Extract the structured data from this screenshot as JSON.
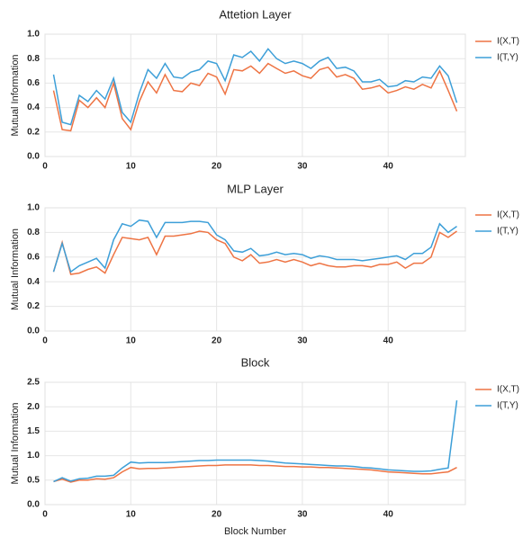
{
  "chart_data": [
    {
      "type": "line",
      "title": "Attetion Layer",
      "ylabel": "Mutual Information",
      "x": [
        1,
        2,
        3,
        4,
        5,
        6,
        7,
        8,
        9,
        10,
        11,
        12,
        13,
        14,
        15,
        16,
        17,
        18,
        19,
        20,
        21,
        22,
        23,
        24,
        25,
        26,
        27,
        28,
        29,
        30,
        31,
        32,
        33,
        34,
        35,
        36,
        37,
        38,
        39,
        40,
        41,
        42,
        43,
        44,
        45,
        46,
        47,
        48
      ],
      "series": [
        {
          "name": "I(X,T)",
          "color": "#ee7444",
          "values": [
            0.54,
            0.22,
            0.21,
            0.46,
            0.4,
            0.48,
            0.4,
            0.6,
            0.31,
            0.22,
            0.45,
            0.61,
            0.52,
            0.67,
            0.54,
            0.53,
            0.6,
            0.58,
            0.68,
            0.65,
            0.51,
            0.71,
            0.7,
            0.74,
            0.68,
            0.76,
            0.72,
            0.68,
            0.7,
            0.66,
            0.64,
            0.71,
            0.73,
            0.65,
            0.67,
            0.64,
            0.55,
            0.56,
            0.58,
            0.52,
            0.54,
            0.57,
            0.55,
            0.59,
            0.56,
            0.7,
            0.54,
            0.37
          ]
        },
        {
          "name": "I(T,Y)",
          "color": "#3d9fd8",
          "values": [
            0.67,
            0.28,
            0.26,
            0.5,
            0.45,
            0.54,
            0.47,
            0.64,
            0.36,
            0.28,
            0.52,
            0.71,
            0.64,
            0.76,
            0.65,
            0.64,
            0.69,
            0.71,
            0.78,
            0.76,
            0.62,
            0.83,
            0.81,
            0.86,
            0.78,
            0.88,
            0.8,
            0.76,
            0.78,
            0.76,
            0.72,
            0.78,
            0.81,
            0.72,
            0.73,
            0.7,
            0.61,
            0.61,
            0.63,
            0.57,
            0.58,
            0.62,
            0.61,
            0.65,
            0.64,
            0.74,
            0.66,
            0.44
          ]
        }
      ],
      "xlim": [
        0,
        49
      ],
      "xticks": [
        0,
        10,
        20,
        30,
        40
      ],
      "ylim": [
        0,
        1
      ],
      "yticks": [
        {
          "value": 0,
          "label": "0.0"
        },
        {
          "value": 0.2,
          "label": "0.2"
        },
        {
          "value": 0.4,
          "label": "0.4"
        },
        {
          "value": 0.6,
          "label": "0.6"
        },
        {
          "value": 0.8,
          "label": "0.8"
        },
        {
          "value": 1,
          "label": "1.0"
        }
      ],
      "grid": true,
      "legend": "right"
    },
    {
      "type": "line",
      "title": "MLP Layer",
      "ylabel": "Mutual Information",
      "x": [
        1,
        2,
        3,
        4,
        5,
        6,
        7,
        8,
        9,
        10,
        11,
        12,
        13,
        14,
        15,
        16,
        17,
        18,
        19,
        20,
        21,
        22,
        23,
        24,
        25,
        26,
        27,
        28,
        29,
        30,
        31,
        32,
        33,
        34,
        35,
        36,
        37,
        38,
        39,
        40,
        41,
        42,
        43,
        44,
        45,
        46,
        47,
        48
      ],
      "series": [
        {
          "name": "I(X,T)",
          "color": "#ee7444",
          "values": [
            0.48,
            0.72,
            0.46,
            0.47,
            0.5,
            0.52,
            0.47,
            0.62,
            0.76,
            0.75,
            0.74,
            0.76,
            0.62,
            0.77,
            0.77,
            0.78,
            0.79,
            0.81,
            0.8,
            0.74,
            0.71,
            0.6,
            0.57,
            0.62,
            0.55,
            0.56,
            0.58,
            0.56,
            0.58,
            0.56,
            0.53,
            0.55,
            0.53,
            0.52,
            0.52,
            0.53,
            0.53,
            0.52,
            0.54,
            0.54,
            0.56,
            0.51,
            0.55,
            0.55,
            0.6,
            0.8,
            0.76,
            0.81
          ]
        },
        {
          "name": "I(T,Y)",
          "color": "#3d9fd8",
          "values": [
            0.48,
            0.71,
            0.48,
            0.53,
            0.56,
            0.59,
            0.51,
            0.74,
            0.87,
            0.85,
            0.9,
            0.89,
            0.76,
            0.88,
            0.88,
            0.88,
            0.89,
            0.89,
            0.88,
            0.78,
            0.74,
            0.65,
            0.64,
            0.67,
            0.61,
            0.62,
            0.64,
            0.62,
            0.63,
            0.62,
            0.59,
            0.61,
            0.6,
            0.58,
            0.58,
            0.58,
            0.57,
            0.58,
            0.59,
            0.6,
            0.61,
            0.58,
            0.63,
            0.63,
            0.68,
            0.87,
            0.8,
            0.85
          ]
        }
      ],
      "xlim": [
        0,
        49
      ],
      "xticks": [
        0,
        10,
        20,
        30,
        40
      ],
      "ylim": [
        0,
        1
      ],
      "yticks": [
        {
          "value": 0,
          "label": "0.0"
        },
        {
          "value": 0.2,
          "label": "0.2"
        },
        {
          "value": 0.4,
          "label": "0.4"
        },
        {
          "value": 0.6,
          "label": "0.6"
        },
        {
          "value": 0.8,
          "label": "0.8"
        },
        {
          "value": 1,
          "label": "1.0"
        }
      ],
      "grid": true,
      "legend": "right"
    },
    {
      "type": "line",
      "title": "Block",
      "ylabel": "Mutual Information",
      "xlabel": "Block Number",
      "x": [
        1,
        2,
        3,
        4,
        5,
        6,
        7,
        8,
        9,
        10,
        11,
        12,
        13,
        14,
        15,
        16,
        17,
        18,
        19,
        20,
        21,
        22,
        23,
        24,
        25,
        26,
        27,
        28,
        29,
        30,
        31,
        32,
        33,
        34,
        35,
        36,
        37,
        38,
        39,
        40,
        41,
        42,
        43,
        44,
        45,
        46,
        47,
        48
      ],
      "series": [
        {
          "name": "I(X,T)",
          "color": "#ee7444",
          "values": [
            0.47,
            0.52,
            0.46,
            0.5,
            0.5,
            0.53,
            0.52,
            0.55,
            0.67,
            0.76,
            0.73,
            0.74,
            0.74,
            0.75,
            0.76,
            0.77,
            0.78,
            0.79,
            0.8,
            0.8,
            0.81,
            0.81,
            0.81,
            0.81,
            0.8,
            0.8,
            0.79,
            0.78,
            0.78,
            0.77,
            0.77,
            0.76,
            0.76,
            0.75,
            0.74,
            0.73,
            0.72,
            0.71,
            0.69,
            0.67,
            0.66,
            0.65,
            0.64,
            0.63,
            0.63,
            0.65,
            0.67,
            0.76
          ]
        },
        {
          "name": "I(T,Y)",
          "color": "#3d9fd8",
          "values": [
            0.47,
            0.55,
            0.48,
            0.53,
            0.54,
            0.58,
            0.58,
            0.6,
            0.75,
            0.87,
            0.85,
            0.86,
            0.86,
            0.86,
            0.87,
            0.88,
            0.89,
            0.9,
            0.9,
            0.91,
            0.91,
            0.91,
            0.91,
            0.91,
            0.9,
            0.89,
            0.87,
            0.85,
            0.84,
            0.83,
            0.82,
            0.81,
            0.8,
            0.79,
            0.79,
            0.78,
            0.76,
            0.75,
            0.73,
            0.71,
            0.7,
            0.69,
            0.68,
            0.68,
            0.69,
            0.72,
            0.75,
            2.13
          ]
        }
      ],
      "xlim": [
        0,
        49
      ],
      "xticks": [
        0,
        10,
        20,
        30,
        40
      ],
      "ylim": [
        0,
        2.5
      ],
      "yticks": [
        {
          "value": 0,
          "label": "0.0"
        },
        {
          "value": 0.5,
          "label": "0.5"
        },
        {
          "value": 1,
          "label": "1.0"
        },
        {
          "value": 1.5,
          "label": "1.5"
        },
        {
          "value": 2,
          "label": "2.0"
        },
        {
          "value": 2.5,
          "label": "2.5"
        }
      ],
      "grid": true,
      "legend": "right"
    }
  ]
}
